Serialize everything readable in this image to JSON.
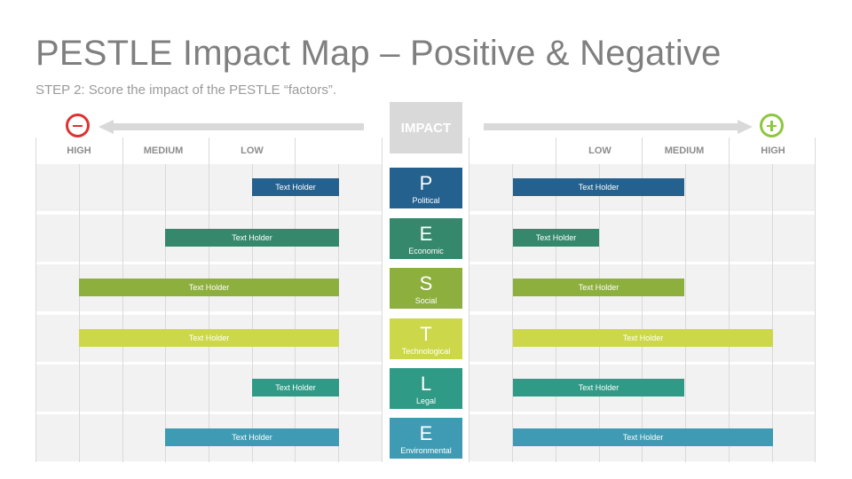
{
  "header": {
    "title": "PESTLE Impact Map – Positive & Negative",
    "subtitle": "STEP 2: Score the impact of the PESTLE “factors”."
  },
  "impact_label": "IMPACT",
  "scale": {
    "left": [
      "HIGH",
      "MEDIUM",
      "LOW"
    ],
    "right": [
      "LOW",
      "MEDIUM",
      "HIGH"
    ]
  },
  "factors": [
    {
      "letter": "P",
      "name": "Political",
      "color": "#24618f",
      "negative": {
        "label": "Text Holder"
      },
      "positive": {
        "label": "Text Holder"
      }
    },
    {
      "letter": "E",
      "name": "Economic",
      "color": "#35886b",
      "negative": {
        "label": "Text Holder"
      },
      "positive": {
        "label": "Text Holder"
      }
    },
    {
      "letter": "S",
      "name": "Social",
      "color": "#8daf3e",
      "negative": {
        "label": "Text Holder"
      },
      "positive": {
        "label": "Text Holder"
      }
    },
    {
      "letter": "T",
      "name": "Technological",
      "color": "#ccd84a",
      "negative": {
        "label": "Text Holder"
      },
      "positive": {
        "label": "Text Holder"
      }
    },
    {
      "letter": "L",
      "name": "Legal",
      "color": "#2f9a86",
      "negative": {
        "label": "Text Holder"
      },
      "positive": {
        "label": "Text Holder"
      }
    },
    {
      "letter": "E",
      "name": "Environmental",
      "color": "#3f9bb3",
      "negative": {
        "label": "Text Holder"
      },
      "positive": {
        "label": "Text Holder"
      }
    }
  ],
  "colors": {
    "negative_sign": "#e03131",
    "positive_sign": "#8dc63f",
    "arrow": "#d9d9d9"
  }
}
